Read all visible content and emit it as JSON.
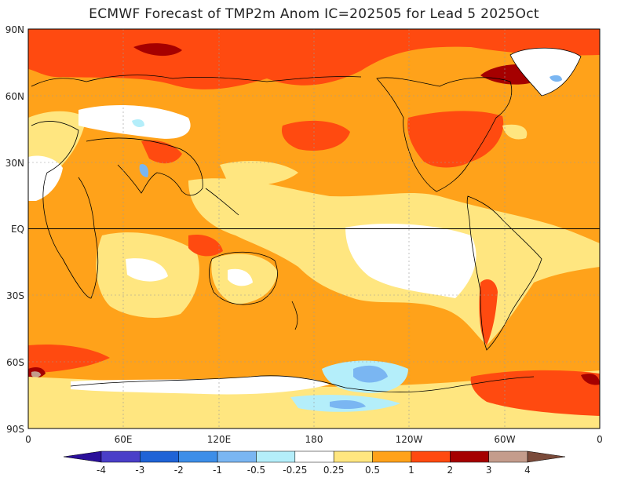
{
  "title": "ECMWF Forecast of TMP2m Anom IC=202505 for Lead 5 2025Oct",
  "lat_labels": [
    "90N",
    "60N",
    "30N",
    "EQ",
    "30S",
    "60S",
    "90S"
  ],
  "lon_labels": [
    "0",
    "60E",
    "120E",
    "180",
    "120W",
    "60W",
    "0"
  ],
  "colorbar": {
    "labels": [
      "-4",
      "-3",
      "-2",
      "-1",
      "-0.5",
      "-0.25",
      "0.25",
      "0.5",
      "1",
      "2",
      "3",
      "4"
    ],
    "colors": [
      "#2a0f9a",
      "#4a3fc8",
      "#1f63d6",
      "#3d8ee8",
      "#7ab6f2",
      "#b4eefa",
      "#ffffff",
      "#ffe680",
      "#ffa21a",
      "#ff4a10",
      "#a50000",
      "#c49c8c",
      "#7a4a3a"
    ]
  },
  "map_colors": {
    "white": "#ffffff",
    "yellow": "#ffe680",
    "orange": "#ffa21a",
    "red": "#ff4a10",
    "darkred": "#a50000",
    "lightblue": "#b4eefa",
    "blue": "#7ab6f2",
    "coast": "#000000"
  }
}
